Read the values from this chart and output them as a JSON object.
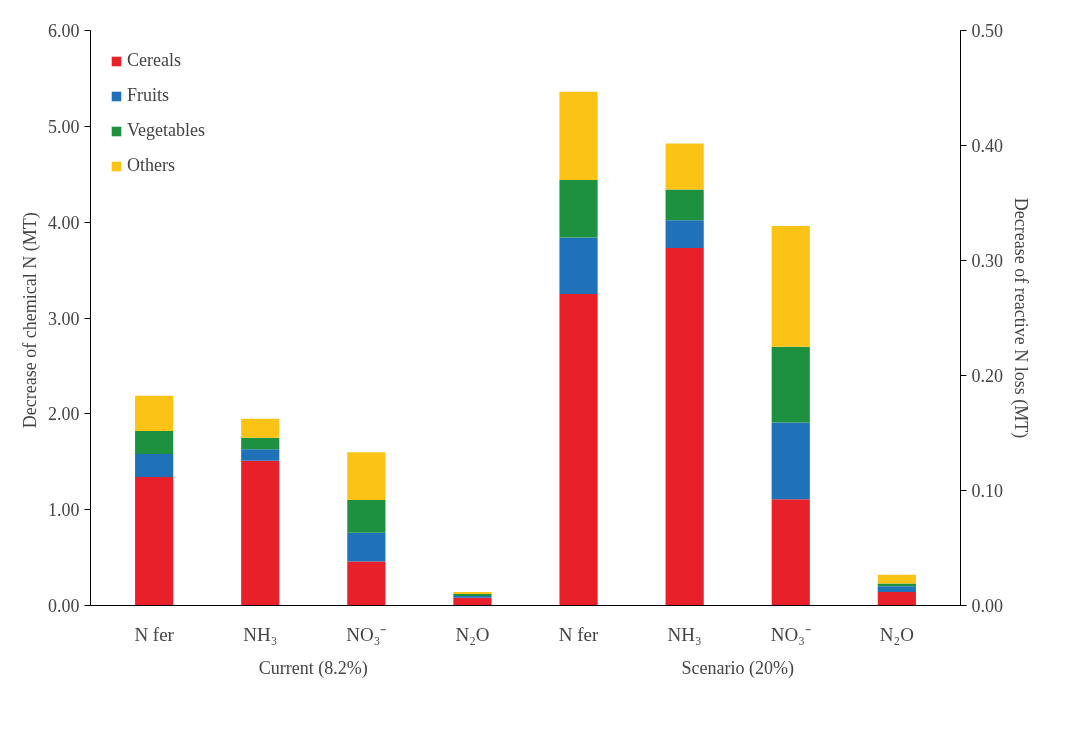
{
  "chart_data": {
    "type": "bar",
    "stacked": true,
    "categories": [
      "N fer",
      "NH₃",
      "NO₃⁻",
      "N₂O",
      "N fer",
      "NH₃",
      "NO₃⁻",
      "N₂O"
    ],
    "series": [
      {
        "name": "Cereals",
        "color": "#e8202a",
        "values": [
          1.34,
          1.51,
          0.46,
          0.08,
          3.25,
          3.73,
          1.11,
          0.14
        ]
      },
      {
        "name": "Fruits",
        "color": "#1f72b8",
        "values": [
          0.24,
          0.12,
          0.3,
          0.02,
          0.59,
          0.29,
          0.8,
          0.06
        ]
      },
      {
        "name": "Vegetables",
        "color": "#1e9140",
        "values": [
          0.24,
          0.12,
          0.34,
          0.02,
          0.6,
          0.32,
          0.79,
          0.03
        ]
      },
      {
        "name": "Others",
        "color": "#fbc315",
        "values": [
          0.37,
          0.2,
          0.5,
          0.02,
          0.92,
          0.48,
          1.26,
          0.09
        ]
      }
    ],
    "ylabel": "Decrease of  chemical N (MT)",
    "y2label": "Decrease of reactive N loss (MT)",
    "ylim": [
      0,
      6
    ],
    "yticks": [
      {
        "value": 0,
        "label": "0.00"
      },
      {
        "value": 1,
        "label": "1.00"
      },
      {
        "value": 2,
        "label": "2.00"
      },
      {
        "value": 3,
        "label": "3.00"
      },
      {
        "value": 4,
        "label": "4.00"
      },
      {
        "value": 5,
        "label": "5.00"
      },
      {
        "value": 6,
        "label": "6.00"
      }
    ],
    "y2lim": [
      0,
      0.5
    ],
    "y2ticks": [
      {
        "value": 0,
        "label": "0.00"
      },
      {
        "value": 0.1,
        "label": "0.10"
      },
      {
        "value": 0.2,
        "label": "0.20"
      },
      {
        "value": 0.3,
        "label": "0.30"
      },
      {
        "value": 0.4,
        "label": "0.40"
      },
      {
        "value": 0.5,
        "label": "0.50"
      }
    ],
    "annotations": [
      "Current (8.2%)",
      "Scenario (20%)"
    ],
    "legend": "top left",
    "grid": false
  }
}
